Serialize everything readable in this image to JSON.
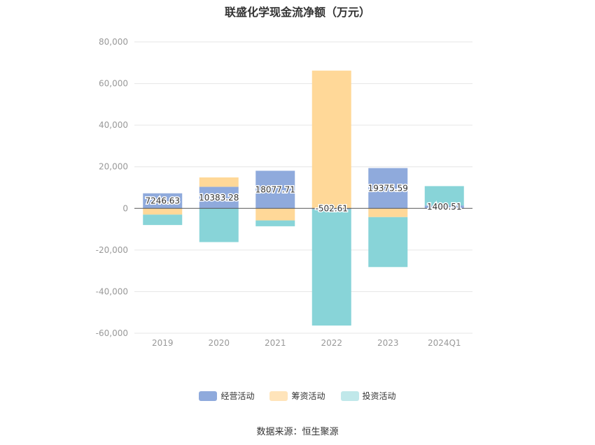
{
  "chart_data": {
    "type": "bar",
    "stacked": true,
    "title": "联盛化学现金流净额（万元）",
    "categories": [
      "2019",
      "2020",
      "2021",
      "2022",
      "2023",
      "2024Q1"
    ],
    "series": [
      {
        "name": "经营活动",
        "color": "#8FAADC",
        "values": [
          7246.63,
          10383.28,
          18077.71,
          -502.61,
          19375.59,
          1400.51
        ]
      },
      {
        "name": "筹资活动",
        "color": "#FFD898",
        "values": [
          -3000,
          4500,
          -5800,
          66200,
          -4200,
          0
        ]
      },
      {
        "name": "投资活动",
        "color": "#88D4D8",
        "values": [
          -5000,
          -16200,
          -2800,
          -55800,
          -24000,
          9300
        ]
      }
    ],
    "data_labels": [
      "7246.63",
      "10383.28",
      "18077.71",
      "-502.61",
      "19375.59",
      "1400.51"
    ],
    "ylim": [
      -60000,
      80000
    ],
    "yticks": [
      80000,
      60000,
      40000,
      20000,
      0,
      -20000,
      -40000,
      -60000
    ],
    "ytick_labels": [
      "80,000",
      "60,000",
      "40,000",
      "20,000",
      "0",
      "-20,000",
      "-40,000",
      "-60,000"
    ],
    "grid": true,
    "legend_position": "bottom"
  },
  "legend": [
    {
      "label": "经营活动",
      "color": "#8FAADC"
    },
    {
      "label": "筹资活动",
      "color": "#FFE4BA"
    },
    {
      "label": "投资活动",
      "color": "#C0E8EA"
    }
  ],
  "source": "数据来源：恒生聚源"
}
